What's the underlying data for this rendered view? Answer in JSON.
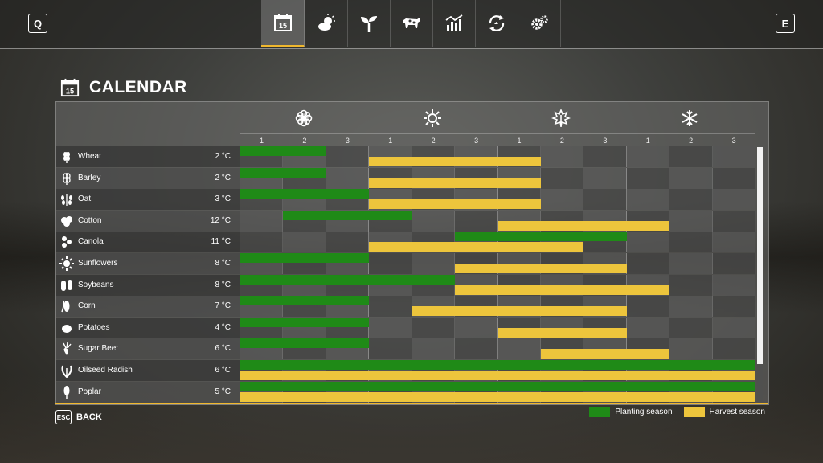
{
  "header": {
    "left_key": "Q",
    "right_key": "E",
    "tabs": [
      {
        "icon": "calendar-icon",
        "active": true
      },
      {
        "icon": "weather-icon",
        "active": false
      },
      {
        "icon": "sprout-icon",
        "active": false
      },
      {
        "icon": "cow-icon",
        "active": false
      },
      {
        "icon": "stats-chart-icon",
        "active": false
      },
      {
        "icon": "recycle-icon",
        "active": false
      },
      {
        "icon": "settings-gears-icon",
        "active": false
      }
    ]
  },
  "page": {
    "title": "CALENDAR",
    "calendar_day": "15"
  },
  "seasons": [
    {
      "icon": "spring-flower-icon"
    },
    {
      "icon": "summer-sun-icon"
    },
    {
      "icon": "autumn-leaf-icon"
    },
    {
      "icon": "winter-snowflake-icon"
    }
  ],
  "periods": [
    "1",
    "2",
    "3",
    "1",
    "2",
    "3",
    "1",
    "2",
    "3",
    "1",
    "2",
    "3"
  ],
  "current_period_position": 1.5,
  "crops": [
    {
      "name": "Wheat",
      "temp": "2 °C",
      "icon": "wheat-icon",
      "planting": [
        [
          0,
          2
        ]
      ],
      "harvest": [
        [
          3,
          7
        ]
      ]
    },
    {
      "name": "Barley",
      "temp": "2 °C",
      "icon": "barley-icon",
      "planting": [
        [
          0,
          2
        ]
      ],
      "harvest": [
        [
          3,
          7
        ]
      ]
    },
    {
      "name": "Oat",
      "temp": "3 °C",
      "icon": "oat-icon",
      "planting": [
        [
          0,
          3
        ]
      ],
      "harvest": [
        [
          3,
          7
        ]
      ]
    },
    {
      "name": "Cotton",
      "temp": "12 °C",
      "icon": "cotton-icon",
      "planting": [
        [
          1,
          4
        ]
      ],
      "harvest": [
        [
          6,
          10
        ]
      ]
    },
    {
      "name": "Canola",
      "temp": "11 °C",
      "icon": "canola-icon",
      "planting": [
        [
          5,
          9
        ]
      ],
      "harvest": [
        [
          3,
          8
        ]
      ]
    },
    {
      "name": "Sunflowers",
      "temp": "8 °C",
      "icon": "sunflower-icon",
      "planting": [
        [
          0,
          3
        ]
      ],
      "harvest": [
        [
          5,
          9
        ]
      ]
    },
    {
      "name": "Soybeans",
      "temp": "8 °C",
      "icon": "soybean-icon",
      "planting": [
        [
          0,
          5
        ]
      ],
      "harvest": [
        [
          5,
          10
        ]
      ]
    },
    {
      "name": "Corn",
      "temp": "7 °C",
      "icon": "corn-icon",
      "planting": [
        [
          0,
          3
        ]
      ],
      "harvest": [
        [
          4,
          9
        ]
      ]
    },
    {
      "name": "Potatoes",
      "temp": "4 °C",
      "icon": "potato-icon",
      "planting": [
        [
          0,
          3
        ]
      ],
      "harvest": [
        [
          6,
          9
        ]
      ]
    },
    {
      "name": "Sugar Beet",
      "temp": "6 °C",
      "icon": "sugar-beet-icon",
      "planting": [
        [
          0,
          3
        ]
      ],
      "harvest": [
        [
          7,
          10
        ]
      ]
    },
    {
      "name": "Oilseed Radish",
      "temp": "6 °C",
      "icon": "oilseed-radish-icon",
      "planting": [
        [
          0,
          12
        ]
      ],
      "harvest": [
        [
          0,
          12
        ]
      ]
    },
    {
      "name": "Poplar",
      "temp": "5 °C",
      "icon": "poplar-icon",
      "planting": [
        [
          0,
          12
        ]
      ],
      "harvest": [
        [
          0,
          12
        ]
      ]
    }
  ],
  "legend": {
    "planting_label": "Planting season",
    "harvest_label": "Harvest season",
    "planting_color": "#1f8a17",
    "harvest_color": "#edc53c"
  },
  "footer": {
    "esc_key": "ESC",
    "back_label": "BACK"
  }
}
